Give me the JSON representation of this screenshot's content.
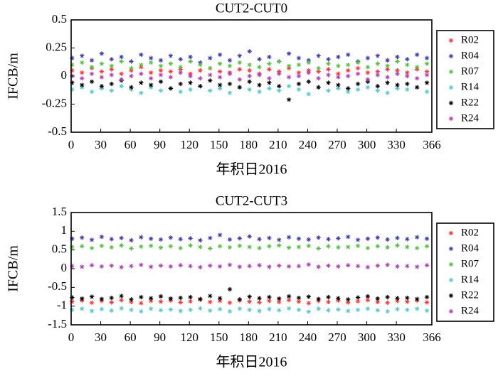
{
  "chart_data": [
    {
      "type": "scatter",
      "title": "CUT2-CUT0",
      "x_label": "年积日2016",
      "y_label": "IFCB/m",
      "xlim": [
        0,
        366
      ],
      "xticks": [
        0,
        30,
        60,
        90,
        120,
        150,
        180,
        210,
        240,
        270,
        300,
        330,
        366
      ],
      "ylim": [
        -0.5,
        0.5
      ],
      "yticks": [
        -0.5,
        -0.25,
        0,
        0.25,
        0.5
      ],
      "legend": "right",
      "x": [
        1,
        11,
        21,
        31,
        41,
        51,
        61,
        71,
        81,
        91,
        101,
        111,
        121,
        131,
        141,
        151,
        161,
        171,
        181,
        191,
        201,
        211,
        221,
        231,
        241,
        251,
        261,
        271,
        281,
        291,
        301,
        311,
        321,
        331,
        341,
        351,
        361
      ],
      "series": [
        {
          "name": "R02",
          "color": "#ff3333",
          "values": [
            0.05,
            0.03,
            0.07,
            0.04,
            0.06,
            0.02,
            0.05,
            0.08,
            0.03,
            0.05,
            0.04,
            0.06,
            0.02,
            0.05,
            0.07,
            0.04,
            0.03,
            0.06,
            0.05,
            0.02,
            0.06,
            0.04,
            0.07,
            0.03,
            0.05,
            0.04,
            0.06,
            0.02,
            0.05,
            0.07,
            0.03,
            0.04,
            0.06,
            0.05,
            0.03,
            0.06,
            0.04
          ]
        },
        {
          "name": "R04",
          "color": "#3c3ca8",
          "values": [
            0.16,
            0.18,
            0.14,
            0.2,
            0.15,
            0.17,
            0.13,
            0.19,
            0.16,
            0.14,
            0.18,
            0.15,
            0.17,
            0.12,
            0.16,
            0.19,
            0.14,
            0.18,
            0.22,
            0.15,
            0.17,
            0.13,
            0.2,
            0.16,
            0.14,
            0.18,
            0.15,
            0.17,
            0.19,
            0.13,
            0.16,
            0.18,
            0.14,
            0.17,
            0.15,
            0.19,
            0.16
          ]
        },
        {
          "name": "R07",
          "color": "#55c040",
          "values": [
            0.1,
            0.12,
            0.08,
            0.11,
            0.09,
            0.13,
            0.07,
            0.1,
            0.12,
            0.09,
            0.11,
            0.08,
            0.13,
            0.1,
            0.07,
            0.11,
            0.09,
            0.12,
            0.1,
            0.08,
            0.11,
            0.13,
            0.09,
            0.1,
            0.12,
            0.07,
            0.11,
            0.09,
            0.1,
            0.12,
            0.08,
            0.11,
            0.09,
            0.13,
            0.1,
            0.08,
            0.11
          ]
        },
        {
          "name": "R14",
          "color": "#55c8d0",
          "values": [
            -0.12,
            -0.1,
            -0.14,
            -0.11,
            -0.13,
            -0.09,
            -0.12,
            -0.15,
            -0.1,
            -0.13,
            -0.11,
            -0.14,
            -0.12,
            -0.09,
            -0.13,
            -0.11,
            -0.15,
            -0.1,
            -0.12,
            -0.14,
            -0.11,
            -0.13,
            -0.09,
            -0.12,
            -0.16,
            -0.1,
            -0.13,
            -0.11,
            -0.14,
            -0.12,
            -0.1,
            -0.13,
            -0.15,
            -0.11,
            -0.12,
            -0.1,
            -0.14
          ]
        },
        {
          "name": "R22",
          "color": "#000000",
          "values": [
            -0.06,
            -0.08,
            -0.05,
            -0.09,
            -0.07,
            -0.04,
            -0.1,
            -0.06,
            -0.08,
            -0.05,
            -0.11,
            -0.07,
            -0.06,
            -0.09,
            -0.04,
            -0.08,
            -0.07,
            -0.1,
            -0.05,
            -0.08,
            -0.06,
            -0.09,
            -0.21,
            -0.07,
            -0.05,
            -0.1,
            -0.06,
            -0.08,
            -0.11,
            -0.07,
            -0.05,
            -0.09,
            -0.06,
            -0.08,
            -0.07,
            -0.1,
            -0.06
          ]
        },
        {
          "name": "R24",
          "color": "#b040b0",
          "values": [
            0,
            -0.02,
            0.02,
            -0.01,
            0.01,
            -0.03,
            0,
            0.02,
            -0.02,
            0.01,
            -0.01,
            0.03,
            0,
            -0.02,
            0.01,
            -0.01,
            0.02,
            -0.03,
            0,
            0.01,
            -0.02,
            0.02,
            -0.01,
            0,
            0.03,
            -0.02,
            0.01,
            -0.01,
            0,
            0.02,
            -0.03,
            0.01,
            -0.01,
            0.02,
            0,
            -0.02,
            0.01
          ]
        }
      ]
    },
    {
      "type": "scatter",
      "title": "CUT2-CUT3",
      "x_label": "年积日2016",
      "y_label": "IFCB/m",
      "xlim": [
        0,
        366
      ],
      "xticks": [
        0,
        30,
        60,
        90,
        120,
        150,
        180,
        210,
        240,
        270,
        300,
        330,
        366
      ],
      "ylim": [
        -1.5,
        1.5
      ],
      "yticks": [
        -1.5,
        -1,
        -0.5,
        0,
        0.5,
        1,
        1.5
      ],
      "legend": "right",
      "x": [
        1,
        11,
        21,
        31,
        41,
        51,
        61,
        71,
        81,
        91,
        101,
        111,
        121,
        131,
        141,
        151,
        161,
        171,
        181,
        191,
        201,
        211,
        221,
        231,
        241,
        251,
        261,
        271,
        281,
        291,
        301,
        311,
        321,
        331,
        341,
        351,
        361
      ],
      "series": [
        {
          "name": "R02",
          "color": "#ff3333",
          "values": [
            -0.88,
            -0.85,
            -0.91,
            -0.86,
            -0.9,
            -0.84,
            -0.89,
            -0.92,
            -0.86,
            -0.88,
            -0.85,
            -0.9,
            -0.87,
            -0.83,
            -0.89,
            -0.86,
            -0.91,
            -0.85,
            -0.88,
            -0.9,
            -0.86,
            -0.89,
            -0.84,
            -0.88,
            -0.92,
            -0.86,
            -0.89,
            -0.85,
            -0.9,
            -0.87,
            -0.84,
            -0.89,
            -0.91,
            -0.86,
            -0.88,
            -0.85,
            -0.9
          ]
        },
        {
          "name": "R04",
          "color": "#3c3ca8",
          "values": [
            0.8,
            0.83,
            0.77,
            0.85,
            0.79,
            0.82,
            0.76,
            0.84,
            0.8,
            0.78,
            0.83,
            0.79,
            0.81,
            0.76,
            0.82,
            0.9,
            0.78,
            0.81,
            0.86,
            0.79,
            0.82,
            0.77,
            0.84,
            0.8,
            0.78,
            0.83,
            0.79,
            0.81,
            0.85,
            0.77,
            0.8,
            0.83,
            0.78,
            0.82,
            0.79,
            0.84,
            0.8
          ]
        },
        {
          "name": "R07",
          "color": "#55c040",
          "values": [
            0.58,
            0.6,
            0.55,
            0.61,
            0.57,
            0.62,
            0.54,
            0.59,
            0.61,
            0.56,
            0.6,
            0.55,
            0.62,
            0.58,
            0.54,
            0.6,
            0.57,
            0.61,
            0.58,
            0.55,
            0.6,
            0.62,
            0.56,
            0.58,
            0.61,
            0.54,
            0.6,
            0.57,
            0.58,
            0.61,
            0.55,
            0.6,
            0.57,
            0.62,
            0.58,
            0.55,
            0.6
          ]
        },
        {
          "name": "R14",
          "color": "#55c8d0",
          "values": [
            -1.1,
            -1.07,
            -1.13,
            -1.08,
            -1.12,
            -1.06,
            -1.1,
            -1.14,
            -1.07,
            -1.11,
            -1.09,
            -1.13,
            -1.1,
            -1.06,
            -1.12,
            -1.08,
            -1.14,
            -1.07,
            -1.1,
            -1.13,
            -1.08,
            -1.11,
            -1.06,
            -1.1,
            -1.15,
            -1.07,
            -1.11,
            -1.09,
            -1.13,
            -1.1,
            -1.07,
            -1.11,
            -1.14,
            -1.08,
            -1.1,
            -1.07,
            -1.12
          ]
        },
        {
          "name": "R22",
          "color": "#000000",
          "values": [
            -0.77,
            -0.8,
            -0.75,
            -0.81,
            -0.78,
            -0.73,
            -0.82,
            -0.76,
            -0.79,
            -0.74,
            -0.8,
            -0.78,
            -0.76,
            -0.81,
            -0.73,
            -0.79,
            -0.55,
            -0.82,
            -0.75,
            -0.79,
            -0.76,
            -0.8,
            -0.74,
            -0.78,
            -0.75,
            -0.81,
            -0.76,
            -0.79,
            -0.82,
            -0.77,
            -0.74,
            -0.8,
            -0.76,
            -0.79,
            -0.78,
            -0.81,
            -0.76
          ]
        },
        {
          "name": "R24",
          "color": "#b040b0",
          "values": [
            0.07,
            0.05,
            0.09,
            0.06,
            0.08,
            0.04,
            0.07,
            0.1,
            0.05,
            0.08,
            0.06,
            0.09,
            0.07,
            0.04,
            0.08,
            0.06,
            0.1,
            0.05,
            0.07,
            0.09,
            0.05,
            0.08,
            0.06,
            0.07,
            0.11,
            0.05,
            0.08,
            0.06,
            0.09,
            0.07,
            0.04,
            0.08,
            0.1,
            0.06,
            0.07,
            0.05,
            0.09
          ]
        }
      ]
    }
  ]
}
